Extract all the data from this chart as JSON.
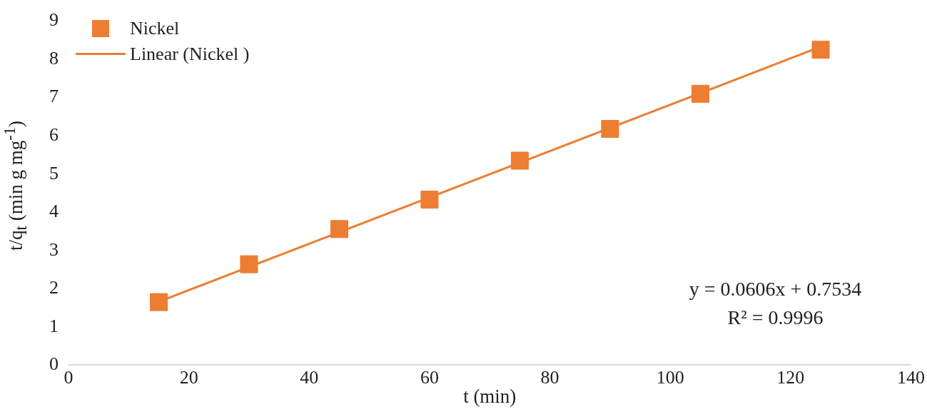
{
  "chart_data": {
    "type": "scatter",
    "xlabel": "t (min)",
    "ylabel": "t/q$_{t}$ (min g mg$^{-1}$)",
    "xlim": [
      0,
      140
    ],
    "xticks": [
      0,
      20,
      40,
      60,
      80,
      100,
      120,
      140
    ],
    "ylim": [
      0,
      9
    ],
    "yticks": [
      0,
      1,
      2,
      3,
      4,
      5,
      6,
      7,
      8,
      9
    ],
    "grid": false,
    "legend": "top left",
    "series": [
      {
        "name": "Nickel",
        "marker": "square",
        "color": "#ed7d31",
        "x": [
          15,
          30,
          45,
          60,
          75,
          90,
          105,
          125
        ],
        "values": [
          1.65,
          2.64,
          3.56,
          4.33,
          5.35,
          6.18,
          7.1,
          8.25
        ]
      },
      {
        "name": "Linear (Nickel )",
        "type": "line",
        "marker": "none",
        "color": "#ed7d31",
        "x": [
          15,
          125
        ],
        "values": [
          1.66,
          8.33
        ]
      }
    ],
    "annotations": [
      "y = 0.0606x + 0.7534",
      "R² = 0.9996"
    ]
  }
}
